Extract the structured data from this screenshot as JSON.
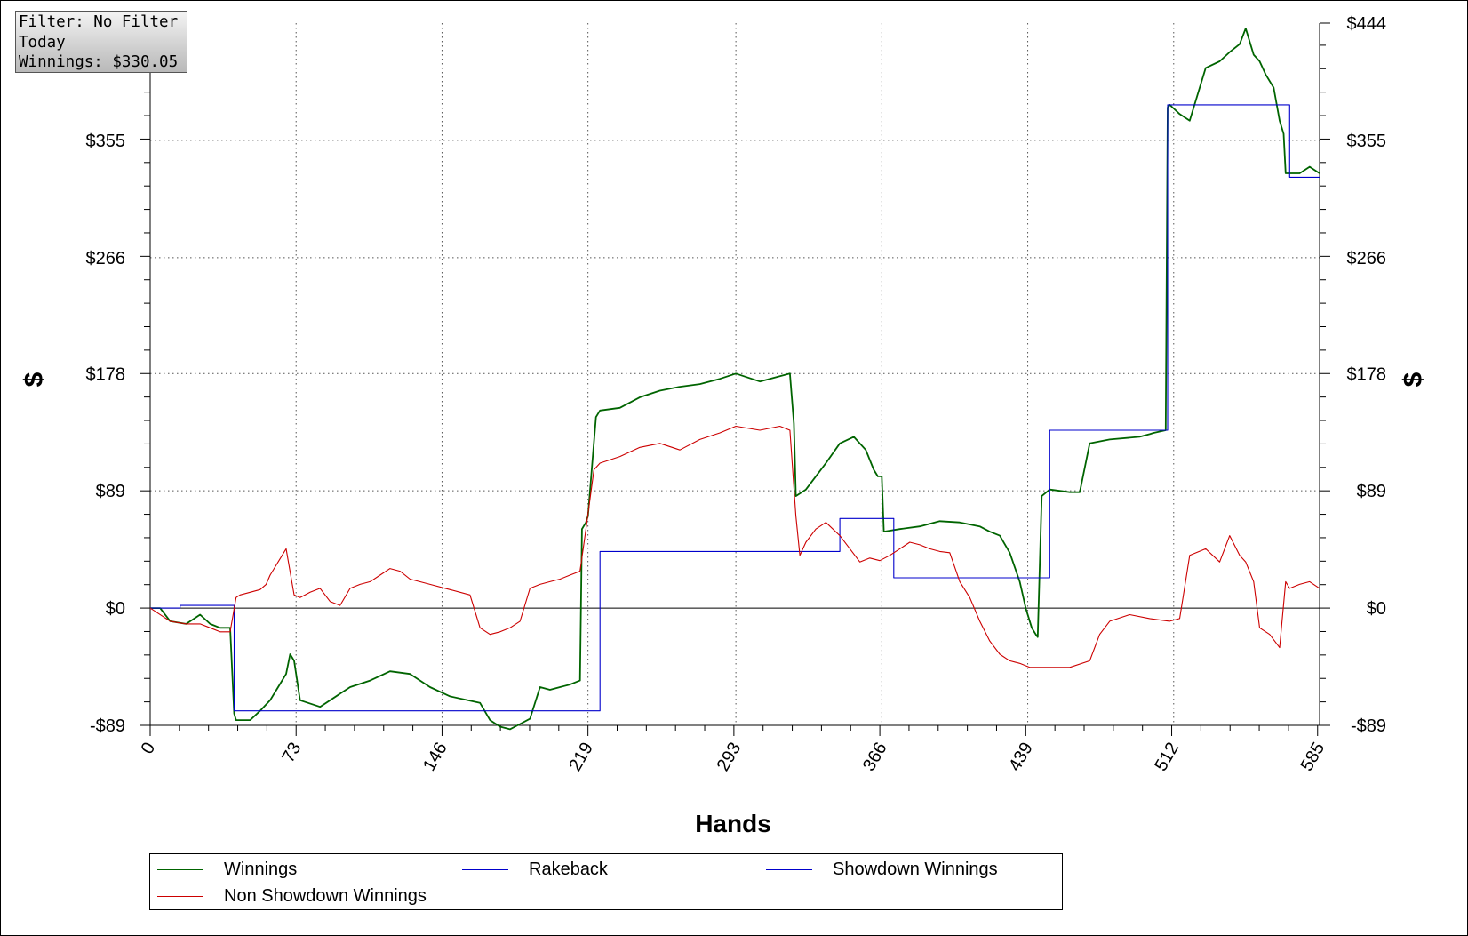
{
  "info_box": {
    "filter": "Filter: No Filter",
    "period": "Today",
    "winnings": "Winnings: $330.05"
  },
  "colors": {
    "winnings": "#006400",
    "rakeback": "#0000cc",
    "showdown": "#0000cc",
    "non_showdown": "#cc0000",
    "grid": "#555555"
  },
  "chart_data": {
    "type": "line",
    "title": "",
    "xlabel": "Hands",
    "ylabel_left": "$",
    "ylabel_right": "$",
    "xlim": [
      0,
      585
    ],
    "ylim": [
      -89,
      444
    ],
    "x_ticks": [
      0,
      73,
      146,
      219,
      293,
      366,
      439,
      512,
      585
    ],
    "x_tick_labels": [
      "0",
      "73",
      "146",
      "219",
      "293",
      "366",
      "439",
      "512",
      "585"
    ],
    "y_ticks": [
      -89,
      0,
      89,
      178,
      266,
      355,
      444
    ],
    "y_tick_labels": [
      "-$89",
      "$0",
      "$89",
      "$178",
      "$266",
      "$355",
      "$444"
    ],
    "grid": true,
    "legend_position": "bottom",
    "series": [
      {
        "name": "Winnings",
        "key": "winnings",
        "x": [
          0,
          5,
          10,
          18,
          25,
          30,
          35,
          40,
          42,
          43,
          45,
          50,
          55,
          60,
          64,
          68,
          70,
          72,
          75,
          85,
          95,
          100,
          110,
          120,
          130,
          140,
          150,
          165,
          170,
          175,
          180,
          185,
          190,
          195,
          200,
          205,
          210,
          215,
          216,
          218,
          219,
          223,
          225,
          235,
          245,
          255,
          265,
          275,
          285,
          293,
          305,
          315,
          320,
          322,
          323,
          328,
          333,
          338,
          345,
          352,
          358,
          362,
          364,
          366,
          367,
          375,
          385,
          395,
          405,
          415,
          420,
          425,
          430,
          435,
          438,
          441,
          443,
          444,
          446,
          450,
          460,
          465,
          470,
          480,
          495,
          500,
          502,
          508,
          509,
          510,
          515,
          520,
          528,
          535,
          540,
          545,
          548,
          552,
          555,
          558,
          562,
          565,
          567,
          568,
          570,
          575,
          580,
          585
        ],
        "y": [
          0,
          0,
          -10,
          -12,
          -5,
          -12,
          -15,
          -15,
          -80,
          -85,
          -85,
          -85,
          -78,
          -70,
          -60,
          -50,
          -35,
          -40,
          -70,
          -75,
          -65,
          -60,
          -55,
          -48,
          -50,
          -60,
          -67,
          -72,
          -85,
          -90,
          -92,
          -88,
          -84,
          -60,
          -62,
          -60,
          -58,
          -55,
          60,
          65,
          70,
          145,
          150,
          152,
          160,
          165,
          168,
          170,
          174,
          178,
          172,
          176,
          178,
          140,
          85,
          90,
          100,
          110,
          125,
          130,
          120,
          105,
          100,
          100,
          58,
          60,
          62,
          66,
          65,
          62,
          58,
          55,
          42,
          20,
          0,
          -15,
          -20,
          -22,
          85,
          90,
          88,
          88,
          125,
          128,
          130,
          132,
          133,
          135,
          380,
          382,
          375,
          370,
          410,
          415,
          422,
          428,
          440,
          420,
          415,
          405,
          395,
          370,
          360,
          330,
          330,
          330,
          335,
          330
        ]
      },
      {
        "name": "Rakeback",
        "key": "rakeback",
        "x": [
          0,
          585
        ],
        "y": [
          0,
          0
        ]
      },
      {
        "name": "Showdown Winnings",
        "key": "showdown",
        "x": [
          0,
          15,
          15,
          42,
          42,
          44,
          44,
          215,
          215,
          225,
          225,
          345,
          345,
          372,
          372,
          450,
          450,
          509,
          509,
          570,
          570,
          585
        ],
        "y": [
          0,
          0,
          2,
          2,
          -78,
          -78,
          -78,
          -78,
          -78,
          -78,
          43,
          43,
          68,
          68,
          23,
          23,
          135,
          135,
          382,
          382,
          327,
          327
        ]
      },
      {
        "name": "Non Showdown Winnings",
        "key": "non_showdown",
        "x": [
          0,
          10,
          18,
          25,
          30,
          35,
          40,
          43,
          45,
          50,
          55,
          58,
          60,
          62,
          66,
          68,
          72,
          75,
          80,
          85,
          90,
          95,
          100,
          105,
          110,
          115,
          120,
          125,
          130,
          140,
          150,
          160,
          165,
          170,
          175,
          180,
          185,
          190,
          195,
          200,
          205,
          210,
          215,
          218,
          222,
          225,
          235,
          245,
          255,
          265,
          275,
          285,
          293,
          305,
          315,
          320,
          323,
          325,
          328,
          333,
          338,
          345,
          350,
          355,
          360,
          365,
          370,
          375,
          380,
          385,
          390,
          395,
          400,
          405,
          410,
          415,
          420,
          425,
          430,
          435,
          440,
          445,
          450,
          460,
          470,
          475,
          480,
          490,
          500,
          510,
          515,
          520,
          528,
          535,
          540,
          545,
          548,
          552,
          555,
          560,
          565,
          568,
          570,
          575,
          580,
          585
        ],
        "y": [
          0,
          -10,
          -12,
          -12,
          -15,
          -18,
          -18,
          8,
          10,
          12,
          14,
          18,
          25,
          30,
          40,
          45,
          10,
          8,
          12,
          15,
          5,
          2,
          15,
          18,
          20,
          25,
          30,
          28,
          22,
          18,
          14,
          10,
          -15,
          -20,
          -18,
          -15,
          -10,
          15,
          18,
          20,
          22,
          25,
          28,
          60,
          105,
          110,
          115,
          122,
          125,
          120,
          128,
          133,
          138,
          135,
          138,
          135,
          70,
          40,
          50,
          60,
          65,
          55,
          45,
          35,
          38,
          36,
          40,
          45,
          50,
          48,
          45,
          43,
          42,
          20,
          8,
          -10,
          -25,
          -35,
          -40,
          -42,
          -45,
          -45,
          -45,
          -45,
          -40,
          -20,
          -10,
          -5,
          -8,
          -10,
          -8,
          40,
          45,
          35,
          55,
          40,
          35,
          20,
          -15,
          -20,
          -30,
          20,
          15,
          18,
          20,
          15
        ]
      }
    ]
  },
  "legend": {
    "items": [
      {
        "label": "Winnings",
        "key": "winnings"
      },
      {
        "label": "Rakeback",
        "key": "rakeback"
      },
      {
        "label": "Showdown Winnings",
        "key": "showdown"
      },
      {
        "label": "Non Showdown Winnings",
        "key": "non_showdown"
      }
    ]
  }
}
